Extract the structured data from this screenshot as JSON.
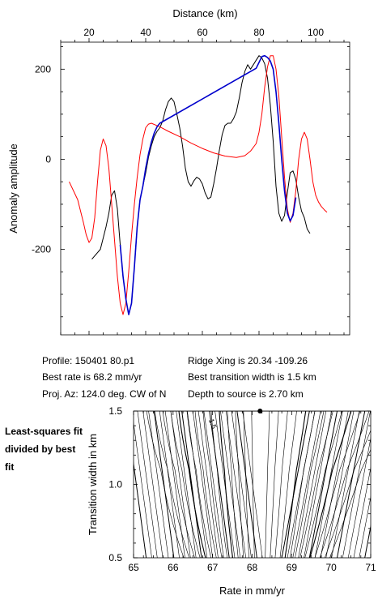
{
  "chart_data": [
    {
      "type": "line",
      "title": "",
      "xlabel": "Distance (km)",
      "ylabel": "Anomaly amplitude",
      "xlim": [
        10,
        112
      ],
      "ylim": [
        -390,
        260
      ],
      "x_ticks": [
        20,
        40,
        60,
        80,
        100
      ],
      "y_ticks": [
        -200,
        0,
        200
      ],
      "x_axis_position": "top",
      "grid": false,
      "series": [
        {
          "name": "",
          "color": "#000000",
          "points": [
            [
              21,
              -222
            ],
            [
              24,
              -200
            ],
            [
              26,
              -150
            ],
            [
              27,
              -120
            ],
            [
              28,
              -80
            ],
            [
              29,
              -70
            ],
            [
              30,
              -110
            ],
            [
              31,
              -190
            ],
            [
              32,
              -260
            ],
            [
              33,
              -310
            ],
            [
              34,
              -345
            ],
            [
              35,
              -320
            ],
            [
              36,
              -240
            ],
            [
              37,
              -150
            ],
            [
              38,
              -90
            ],
            [
              39,
              -60
            ],
            [
              40,
              -30
            ],
            [
              41,
              5
            ],
            [
              42,
              30
            ],
            [
              43,
              50
            ],
            [
              44,
              62
            ],
            [
              45,
              70
            ],
            [
              46,
              85
            ],
            [
              47,
              110
            ],
            [
              48,
              128
            ],
            [
              49,
              136
            ],
            [
              50,
              128
            ],
            [
              51,
              100
            ],
            [
              52,
              70
            ],
            [
              53,
              30
            ],
            [
              54,
              -20
            ],
            [
              55,
              -50
            ],
            [
              56,
              -60
            ],
            [
              57,
              -48
            ],
            [
              58,
              -40
            ],
            [
              59,
              -44
            ],
            [
              60,
              -55
            ],
            [
              61,
              -75
            ],
            [
              62,
              -88
            ],
            [
              63,
              -84
            ],
            [
              64,
              -55
            ],
            [
              65,
              -20
            ],
            [
              66,
              20
            ],
            [
              67,
              55
            ],
            [
              68,
              75
            ],
            [
              69,
              80
            ],
            [
              70,
              80
            ],
            [
              71,
              90
            ],
            [
              72,
              105
            ],
            [
              73,
              135
            ],
            [
              74,
              170
            ],
            [
              75,
              195
            ],
            [
              76,
              210
            ],
            [
              77,
              200
            ],
            [
              78,
              210
            ],
            [
              79,
              220
            ],
            [
              80,
              230
            ],
            [
              81,
              225
            ],
            [
              82,
              212
            ],
            [
              83,
              180
            ],
            [
              84,
              120
            ],
            [
              85,
              40
            ],
            [
              86,
              -60
            ],
            [
              87,
              -120
            ],
            [
              88,
              -138
            ],
            [
              89,
              -125
            ],
            [
              90,
              -75
            ],
            [
              91,
              -30
            ],
            [
              92,
              -26
            ],
            [
              93,
              -45
            ],
            [
              94,
              -85
            ],
            [
              95,
              -115
            ],
            [
              96,
              -130
            ],
            [
              97,
              -155
            ],
            [
              98,
              -165
            ]
          ]
        },
        {
          "name": "",
          "color": "#ff0000",
          "points": [
            [
              13,
              -50
            ],
            [
              16,
              -90
            ],
            [
              18,
              -140
            ],
            [
              19,
              -168
            ],
            [
              20,
              -185
            ],
            [
              21,
              -175
            ],
            [
              22,
              -130
            ],
            [
              23,
              -50
            ],
            [
              24,
              20
            ],
            [
              25,
              45
            ],
            [
              26,
              30
            ],
            [
              27,
              -20
            ],
            [
              28,
              -100
            ],
            [
              29,
              -180
            ],
            [
              30,
              -260
            ],
            [
              31,
              -320
            ],
            [
              32,
              -345
            ],
            [
              33,
              -320
            ],
            [
              34,
              -250
            ],
            [
              35,
              -170
            ],
            [
              36,
              -100
            ],
            [
              37,
              -40
            ],
            [
              38,
              10
            ],
            [
              39,
              45
            ],
            [
              40,
              70
            ],
            [
              41,
              78
            ],
            [
              42,
              80
            ],
            [
              45,
              72
            ],
            [
              48,
              62
            ],
            [
              52,
              50
            ],
            [
              56,
              36
            ],
            [
              60,
              24
            ],
            [
              64,
              14
            ],
            [
              68,
              7
            ],
            [
              72,
              4
            ],
            [
              75,
              8
            ],
            [
              77,
              18
            ],
            [
              79,
              35
            ],
            [
              80,
              60
            ],
            [
              81,
              100
            ],
            [
              82,
              160
            ],
            [
              83,
              205
            ],
            [
              84,
              230
            ],
            [
              85,
              230
            ],
            [
              86,
              200
            ],
            [
              87,
              140
            ],
            [
              88,
              50
            ],
            [
              89,
              -40
            ],
            [
              90,
              -110
            ],
            [
              91,
              -140
            ],
            [
              92,
              -120
            ],
            [
              93,
              -70
            ],
            [
              94,
              0
            ],
            [
              95,
              45
            ],
            [
              96,
              60
            ],
            [
              97,
              45
            ],
            [
              98,
              0
            ],
            [
              99,
              -50
            ],
            [
              100,
              -80
            ],
            [
              101,
              -95
            ],
            [
              102,
              -105
            ],
            [
              103,
              -112
            ],
            [
              104,
              -118
            ]
          ]
        },
        {
          "name": "",
          "color": "#0000cc",
          "points": [
            [
              31,
              -190
            ],
            [
              32,
              -260
            ],
            [
              33,
              -310
            ],
            [
              34,
              -345
            ],
            [
              35,
              -320
            ],
            [
              36,
              -240
            ],
            [
              37,
              -150
            ],
            [
              38,
              -90
            ],
            [
              39,
              -60
            ],
            [
              40,
              -20
            ],
            [
              41,
              12
            ],
            [
              42,
              38
            ],
            [
              43,
              58
            ],
            [
              44,
              72
            ],
            [
              45,
              80
            ],
            [
              79,
              202
            ],
            [
              80,
              215
            ],
            [
              81,
              228
            ],
            [
              82,
              230
            ],
            [
              83,
              226
            ],
            [
              84,
              218
            ],
            [
              85,
              200
            ],
            [
              86,
              150
            ],
            [
              87,
              80
            ],
            [
              88,
              0
            ],
            [
              89,
              -70
            ],
            [
              90,
              -120
            ],
            [
              91,
              -137
            ],
            [
              92,
              -125
            ],
            [
              93,
              -85
            ]
          ]
        }
      ]
    },
    {
      "type": "contour",
      "title": "",
      "xlabel": "Rate in mm/yr",
      "ylabel": "Transition width in km",
      "xlim": [
        65,
        71
      ],
      "ylim": [
        0.5,
        1.5
      ],
      "x_ticks": [
        65,
        66,
        67,
        68,
        69,
        70,
        71
      ],
      "y_ticks": [
        0.5,
        1.0,
        1.5
      ],
      "best_fit_point": [
        68.2,
        1.5
      ],
      "contour_label": "1.5",
      "color": "#000000"
    }
  ],
  "info": {
    "profile": "Profile: 150401 80.p1",
    "ridge": "Ridge Xing is 20.34 -109.26",
    "best_rate": "Best rate is 68.2 mm/yr",
    "best_width": "Best transition width is 1.5 km",
    "proj_az": "Proj. Az: 124.0 deg. CW of N",
    "depth": "Depth to source is   2.70 km"
  },
  "note": "Least-squares fit divided by best fit"
}
